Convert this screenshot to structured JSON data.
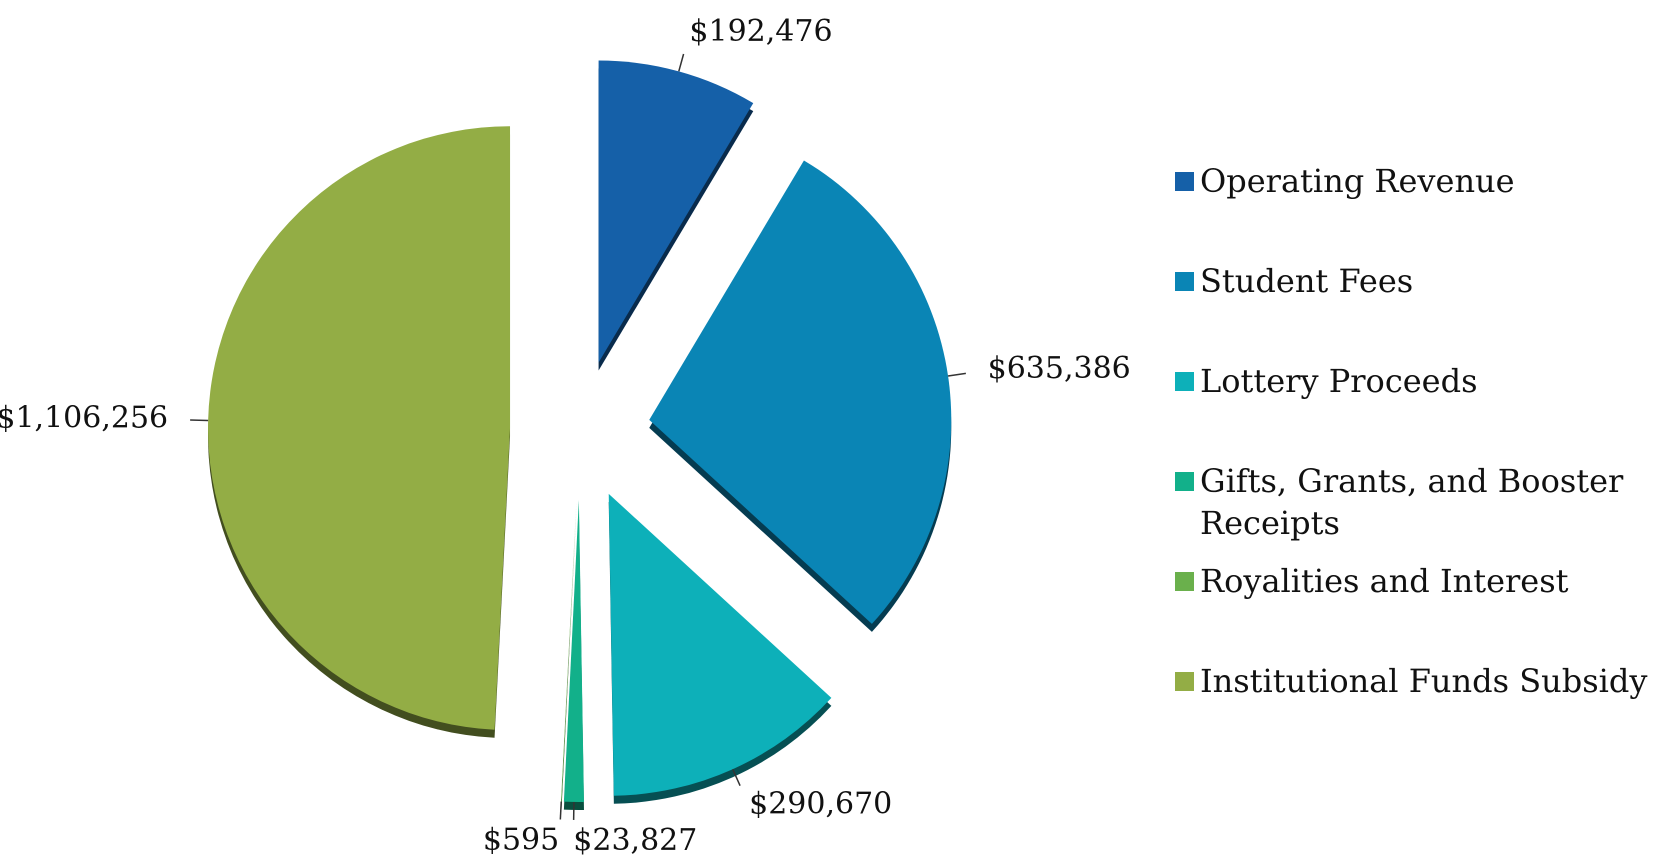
{
  "chart_data": {
    "type": "pie",
    "categories": [
      "Operating Revenue",
      "Student Fees",
      "Lottery Proceeds",
      "Gifts, Grants, and Booster Receipts",
      "Royalities and Interest",
      "Institutional Funds Subsidy"
    ],
    "values": [
      192476,
      635386,
      290670,
      23827,
      595,
      1106256
    ],
    "value_labels": [
      "$192,476",
      "$635,386",
      "$290,670",
      "$23,827",
      "$595",
      "$1,106,256"
    ],
    "colors": [
      "#1560a8",
      "#0a85b5",
      "#0db0b9",
      "#12b08a",
      "#6ab04c",
      "#93ad45"
    ],
    "legend": "right"
  }
}
